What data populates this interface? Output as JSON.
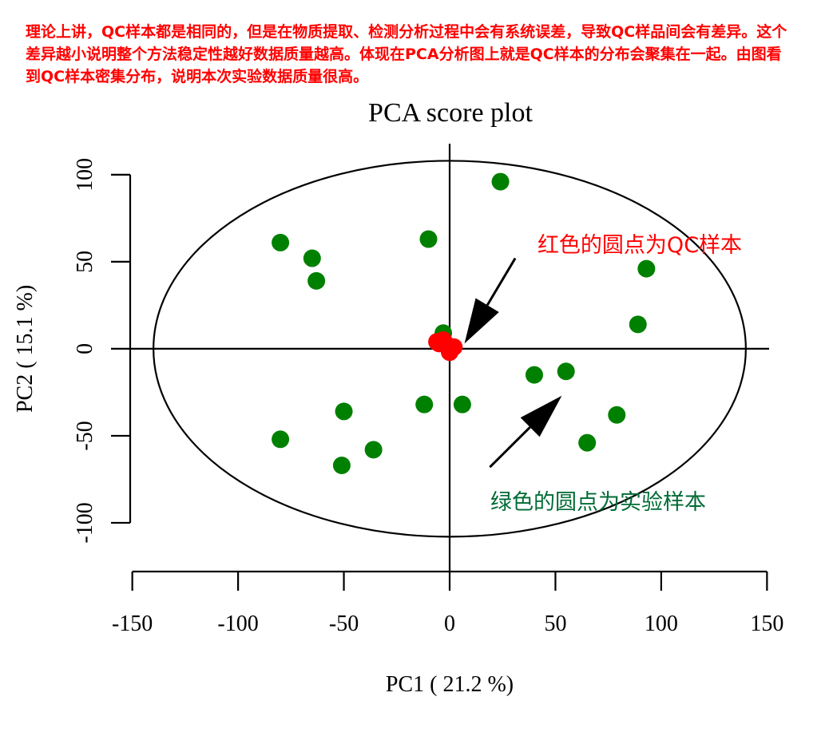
{
  "header": {
    "note": "理论上讲，QC样本都是相同的，但是在物质提取、检测分析过程中会有系统误差，导致QC样品间会有差异。这个差异越小说明整个方法稳定性越好数据质量越高。体现在PCA分析图上就是QC样本的分布会聚集在一起。由图看到QC样本密集分布，说明本次实验数据质量很高。"
  },
  "chart_data": {
    "type": "scatter",
    "title": "PCA score plot",
    "xlabel": "PC1 ( 21.2 %)",
    "ylabel": "PC2 ( 15.1 %)",
    "xlim": [
      -151,
      151
    ],
    "ylim": [
      -128,
      127
    ],
    "xticks": [
      -150,
      -100,
      -50,
      0,
      50,
      100,
      150
    ],
    "yticks": [
      -100,
      -50,
      0,
      50,
      100
    ],
    "ellipse": {
      "center": [
        0,
        0
      ],
      "rx": 140,
      "ry": 108
    },
    "series": [
      {
        "color": "#008000",
        "points": [
          [
            24,
            96
          ],
          [
            -10,
            63
          ],
          [
            -80,
            61
          ],
          [
            -65,
            52
          ],
          [
            -63,
            39
          ],
          [
            93,
            46
          ],
          [
            89,
            14
          ],
          [
            -3,
            9
          ],
          [
            40,
            -15
          ],
          [
            55,
            -13
          ],
          [
            -12,
            -32
          ],
          [
            6,
            -32
          ],
          [
            79,
            -38
          ],
          [
            -50,
            -36
          ],
          [
            65,
            -54
          ],
          [
            -80,
            -52
          ],
          [
            -36,
            -58
          ],
          [
            -51,
            -67
          ]
        ]
      },
      {
        "color": "#ff0000",
        "points": [
          [
            -5,
            3
          ],
          [
            -3,
            5
          ],
          [
            -2,
            3
          ],
          [
            2,
            1
          ],
          [
            0,
            -2
          ],
          [
            -6,
            4
          ]
        ]
      }
    ],
    "annotations": [
      {
        "text": "红色的圆点为QC样本",
        "color": "#ff0000",
        "arrow_from": [
          31,
          52
        ],
        "arrow_to": [
          7,
          3
        ]
      },
      {
        "text": "绿色的圆点为实验样本",
        "color": "#006b35",
        "arrow_from": [
          19,
          -68
        ],
        "arrow_to": [
          53,
          -27
        ]
      }
    ]
  }
}
